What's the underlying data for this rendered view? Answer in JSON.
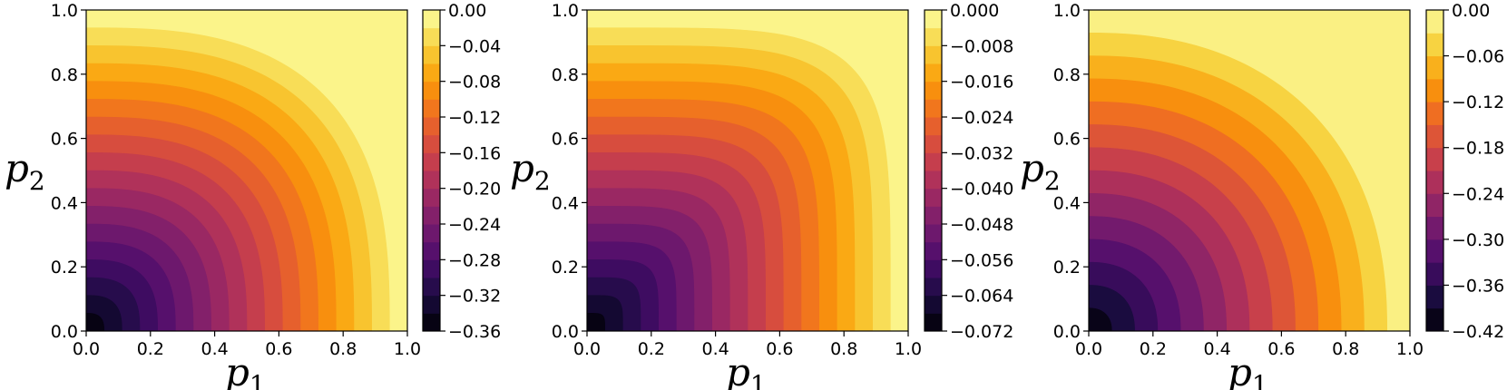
{
  "chart_data": [
    {
      "type": "heatmap",
      "subtype": "filled-contour",
      "xlabel": "p1",
      "ylabel": "p2",
      "xlim": [
        0,
        1
      ],
      "ylim": [
        0,
        1
      ],
      "xticks": [
        "0.0",
        "0.2",
        "0.4",
        "0.6",
        "0.8",
        "1.0"
      ],
      "yticks": [
        "0.0",
        "0.2",
        "0.4",
        "0.6",
        "0.8",
        "1.0"
      ],
      "colormap": "inferno",
      "levels": {
        "min": -0.36,
        "max": 0.0,
        "count": 18
      },
      "contour_exponent": 2.8,
      "colorbar_ticks": [
        "0.00",
        "−0.04",
        "−0.08",
        "−0.12",
        "−0.16",
        "−0.20",
        "−0.24",
        "−0.28",
        "−0.32",
        "−0.36"
      ],
      "colorbar_tick_values": [
        0.0,
        -0.04,
        -0.08,
        -0.12,
        -0.16,
        -0.2,
        -0.24,
        -0.28,
        -0.32,
        -0.36
      ]
    },
    {
      "type": "heatmap",
      "subtype": "filled-contour",
      "xlabel": "p1",
      "ylabel": "p2",
      "xlim": [
        0,
        1
      ],
      "ylim": [
        0,
        1
      ],
      "xticks": [
        "0.0",
        "0.2",
        "0.4",
        "0.6",
        "0.8",
        "1.0"
      ],
      "yticks": [
        "0.0",
        "0.2",
        "0.4",
        "0.6",
        "0.8",
        "1.0"
      ],
      "colormap": "inferno",
      "levels": {
        "min": -0.072,
        "max": 0.0,
        "count": 18
      },
      "contour_exponent": 5.0,
      "colorbar_ticks": [
        "0.000",
        "−0.008",
        "−0.016",
        "−0.024",
        "−0.032",
        "−0.040",
        "−0.048",
        "−0.056",
        "−0.064",
        "−0.072"
      ],
      "colorbar_tick_values": [
        0.0,
        -0.008,
        -0.016,
        -0.024,
        -0.032,
        -0.04,
        -0.048,
        -0.056,
        -0.064,
        -0.072
      ]
    },
    {
      "type": "heatmap",
      "subtype": "filled-contour",
      "xlabel": "p1",
      "ylabel": "p2",
      "xlim": [
        0,
        1
      ],
      "ylim": [
        0,
        1
      ],
      "xticks": [
        "0.0",
        "0.2",
        "0.4",
        "0.6",
        "0.8",
        "1.0"
      ],
      "yticks": [
        "0.0",
        "0.2",
        "0.4",
        "0.6",
        "0.8",
        "1.0"
      ],
      "colormap": "inferno",
      "levels": {
        "min": -0.42,
        "max": 0.0,
        "count": 14
      },
      "contour_exponent": 2.3,
      "colorbar_ticks": [
        "0.00",
        "−0.06",
        "−0.12",
        "−0.18",
        "−0.24",
        "−0.30",
        "−0.36",
        "−0.42"
      ],
      "colorbar_tick_values": [
        0.0,
        -0.06,
        -0.12,
        -0.18,
        -0.24,
        -0.3,
        -0.36,
        -0.42
      ]
    }
  ],
  "colors": {
    "inferno_stops": [
      "#000004",
      "#1b0c41",
      "#4a0c6b",
      "#781c6d",
      "#a52c60",
      "#cf4446",
      "#ed6925",
      "#fb9b06",
      "#f7d13d",
      "#fcffa4"
    ]
  }
}
